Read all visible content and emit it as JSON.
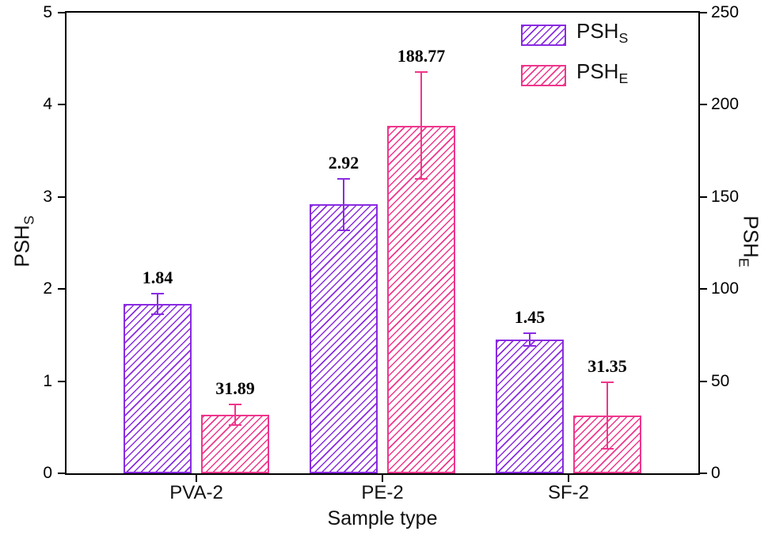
{
  "chart_data": {
    "type": "bar",
    "title": "",
    "xlabel": "Sample type",
    "ylabel_left": {
      "main": "PSH",
      "sub": "S"
    },
    "ylabel_right": {
      "main": "PSH",
      "sub": "E"
    },
    "categories": [
      "PVA-2",
      "PE-2",
      "SF-2"
    ],
    "left_axis": {
      "min": 0,
      "max": 5,
      "ticks": [
        0,
        1,
        2,
        3,
        4,
        5
      ]
    },
    "right_axis": {
      "min": 0,
      "max": 250,
      "ticks": [
        0,
        50,
        100,
        150,
        200,
        250
      ]
    },
    "grid": false,
    "hatch": "diagonal-forward",
    "legend_position": "top-right",
    "series": [
      {
        "key": "pshs",
        "name": "PSH_S",
        "legend": {
          "main": "PSH",
          "sub": "S"
        },
        "axis": "left",
        "color": "#8A2BE2",
        "values": [
          1.84,
          2.92,
          1.45
        ],
        "errors": [
          0.11,
          0.28,
          0.07
        ],
        "value_labels": [
          "1.84",
          "2.92",
          "1.45"
        ]
      },
      {
        "key": "pshe",
        "name": "PSH_E",
        "legend": {
          "main": "PSH",
          "sub": "E"
        },
        "axis": "right",
        "color": "#F0368C",
        "values": [
          31.89,
          188.77,
          31.35
        ],
        "errors": [
          5.5,
          29.0,
          18.0
        ],
        "value_labels": [
          "31.89",
          "188.77",
          "31.35"
        ]
      }
    ]
  }
}
